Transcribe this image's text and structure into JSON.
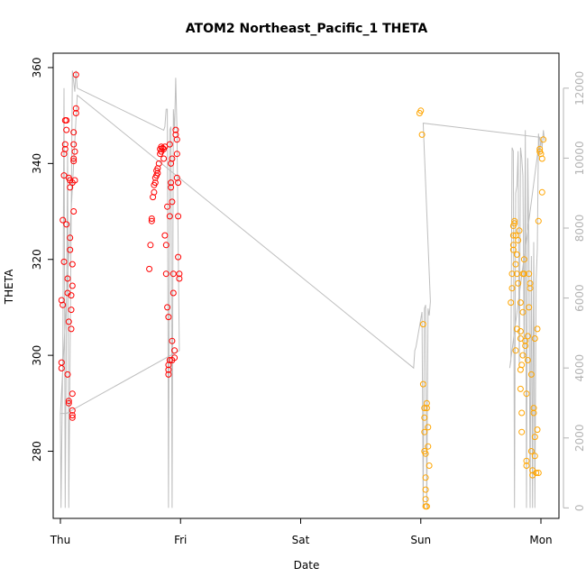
{
  "chart_data": {
    "type": "scatter",
    "title": "ATOM2 Northeast_Pacific_1 THETA",
    "xlabel": "Date",
    "ylabel": "THETA",
    "x_ticks": [
      "Thu",
      "Fri",
      "Sat",
      "Sun",
      "Mon"
    ],
    "xlim": [
      -0.06,
      4.15
    ],
    "ylim": [
      266,
      363
    ],
    "y_ticks": [
      280,
      300,
      320,
      340,
      360
    ],
    "y2lim": [
      -300,
      13000
    ],
    "y2_ticks": [
      0,
      2000,
      4000,
      6000,
      8000,
      10000,
      12000
    ],
    "colors": {
      "red": "#ff0000",
      "orange": "#ffa500",
      "gray": "#bebebe"
    },
    "series": [
      {
        "color_key": "red",
        "points": [
          [
            0.01,
            298.5
          ],
          [
            0.01,
            297.3
          ],
          [
            0.01,
            311.5
          ],
          [
            0.02,
            310.5
          ],
          [
            0.02,
            328.2
          ],
          [
            0.03,
            342
          ],
          [
            0.03,
            337.5
          ],
          [
            0.03,
            319.5
          ],
          [
            0.04,
            344
          ],
          [
            0.04,
            343
          ],
          [
            0.04,
            349
          ],
          [
            0.05,
            347
          ],
          [
            0.05,
            349
          ],
          [
            0.05,
            327.3
          ],
          [
            0.06,
            316
          ],
          [
            0.06,
            313
          ],
          [
            0.06,
            296
          ],
          [
            0.07,
            290.5
          ],
          [
            0.07,
            290
          ],
          [
            0.07,
            307
          ],
          [
            0.07,
            337
          ],
          [
            0.08,
            336.5
          ],
          [
            0.08,
            335
          ],
          [
            0.08,
            324.5
          ],
          [
            0.08,
            322
          ],
          [
            0.09,
            312.5
          ],
          [
            0.09,
            309.5
          ],
          [
            0.09,
            305.5
          ],
          [
            0.1,
            292
          ],
          [
            0.1,
            288.5
          ],
          [
            0.1,
            287.5
          ],
          [
            0.1,
            287
          ],
          [
            0.1,
            319
          ],
          [
            0.1,
            336
          ],
          [
            0.1,
            314.5
          ],
          [
            0.11,
            330
          ],
          [
            0.11,
            341
          ],
          [
            0.11,
            340.5
          ],
          [
            0.11,
            344
          ],
          [
            0.11,
            346.5
          ],
          [
            0.12,
            336.5
          ],
          [
            0.12,
            342.5
          ],
          [
            0.13,
            351.5
          ],
          [
            0.13,
            350.5
          ],
          [
            0.13,
            358.5
          ],
          [
            0.74,
            318
          ],
          [
            0.75,
            323
          ],
          [
            0.76,
            328.5
          ],
          [
            0.76,
            328
          ],
          [
            0.77,
            333
          ],
          [
            0.78,
            334
          ],
          [
            0.78,
            335.5
          ],
          [
            0.79,
            336
          ],
          [
            0.79,
            337
          ],
          [
            0.8,
            337.5
          ],
          [
            0.8,
            338.5
          ],
          [
            0.81,
            339
          ],
          [
            0.81,
            338
          ],
          [
            0.82,
            340
          ],
          [
            0.83,
            342
          ],
          [
            0.83,
            343
          ],
          [
            0.84,
            342.5
          ],
          [
            0.84,
            343.5
          ],
          [
            0.85,
            343.2
          ],
          [
            0.86,
            343
          ],
          [
            0.86,
            341
          ],
          [
            0.87,
            343.5
          ],
          [
            0.87,
            325
          ],
          [
            0.88,
            323
          ],
          [
            0.88,
            317
          ],
          [
            0.89,
            331
          ],
          [
            0.89,
            310
          ],
          [
            0.9,
            308
          ],
          [
            0.9,
            298
          ],
          [
            0.9,
            297
          ],
          [
            0.9,
            296
          ],
          [
            0.91,
            299
          ],
          [
            0.91,
            329
          ],
          [
            0.91,
            344
          ],
          [
            0.92,
            336
          ],
          [
            0.92,
            340
          ],
          [
            0.92,
            335
          ],
          [
            0.93,
            332
          ],
          [
            0.93,
            303
          ],
          [
            0.93,
            299
          ],
          [
            0.93,
            341
          ],
          [
            0.94,
            313
          ],
          [
            0.94,
            317
          ],
          [
            0.95,
            299.5
          ],
          [
            0.95,
            301
          ],
          [
            0.96,
            346
          ],
          [
            0.96,
            347
          ],
          [
            0.97,
            345
          ],
          [
            0.97,
            342
          ],
          [
            0.97,
            337
          ],
          [
            0.98,
            336
          ],
          [
            0.98,
            329
          ],
          [
            0.98,
            320.5
          ],
          [
            0.99,
            317
          ],
          [
            0.99,
            316
          ]
        ]
      },
      {
        "color_key": "orange",
        "points": [
          [
            2.99,
            350.5
          ],
          [
            3,
            351
          ],
          [
            3.01,
            346
          ],
          [
            3.02,
            306.5
          ],
          [
            3.02,
            294
          ],
          [
            3.03,
            289
          ],
          [
            3.03,
            287
          ],
          [
            3.03,
            284
          ],
          [
            3.03,
            280
          ],
          [
            3.04,
            279.5
          ],
          [
            3.04,
            274.5
          ],
          [
            3.04,
            272
          ],
          [
            3.04,
            270
          ],
          [
            3.04,
            268.5
          ],
          [
            3.05,
            268.5
          ],
          [
            3.05,
            290
          ],
          [
            3.05,
            289
          ],
          [
            3.06,
            285
          ],
          [
            3.06,
            281
          ],
          [
            3.07,
            277
          ],
          [
            3.75,
            311
          ],
          [
            3.76,
            314
          ],
          [
            3.76,
            317
          ],
          [
            3.77,
            322
          ],
          [
            3.77,
            323
          ],
          [
            3.77,
            325
          ],
          [
            3.77,
            327
          ],
          [
            3.78,
            328
          ],
          [
            3.78,
            327.5
          ],
          [
            3.79,
            325
          ],
          [
            3.79,
            319
          ],
          [
            3.8,
            321
          ],
          [
            3.8,
            317
          ],
          [
            3.81,
            315
          ],
          [
            3.81,
            324
          ],
          [
            3.82,
            326
          ],
          [
            3.83,
            311
          ],
          [
            3.83,
            303.5
          ],
          [
            3.83,
            297
          ],
          [
            3.83,
            293
          ],
          [
            3.84,
            288
          ],
          [
            3.84,
            284
          ],
          [
            3.85,
            309
          ],
          [
            3.85,
            317
          ],
          [
            3.86,
            320
          ],
          [
            3.86,
            317
          ],
          [
            3.87,
            303
          ],
          [
            3.87,
            302
          ],
          [
            3.88,
            292
          ],
          [
            3.88,
            278
          ],
          [
            3.88,
            277
          ],
          [
            3.89,
            299
          ],
          [
            3.89,
            304
          ],
          [
            3.9,
            310
          ],
          [
            3.9,
            317
          ],
          [
            3.91,
            314
          ],
          [
            3.91,
            315
          ],
          [
            3.92,
            296
          ],
          [
            3.92,
            280
          ],
          [
            3.93,
            275
          ],
          [
            3.93,
            276
          ],
          [
            3.94,
            289
          ],
          [
            3.94,
            288
          ],
          [
            3.95,
            283
          ],
          [
            3.95,
            279
          ],
          [
            3.96,
            275.5
          ],
          [
            3.97,
            284.5
          ],
          [
            3.97,
            305.5
          ],
          [
            3.98,
            275.5
          ],
          [
            3.98,
            328
          ],
          [
            3.99,
            342.5
          ],
          [
            3.99,
            343
          ],
          [
            4,
            342
          ],
          [
            4.01,
            341
          ],
          [
            4.01,
            334
          ],
          [
            4.02,
            345
          ],
          [
            3.83,
            305
          ],
          [
            3.8,
            305.5
          ],
          [
            3.79,
            301
          ],
          [
            3.95,
            303.5
          ],
          [
            3.85,
            300
          ],
          [
            3.84,
            298
          ]
        ]
      }
    ],
    "depth_line": [
      [
        0,
        2700
      ],
      [
        0.005,
        0
      ],
      [
        0.02,
        4500
      ],
      [
        0.03,
        12000
      ],
      [
        0.04,
        0
      ],
      [
        0.06,
        10200
      ],
      [
        0.07,
        0
      ],
      [
        0.1,
        12500
      ],
      [
        0.12,
        11900
      ],
      [
        0.13,
        12500
      ],
      [
        0.14,
        12000
      ],
      [
        0.86,
        10800
      ],
      [
        0.87,
        10900
      ],
      [
        0.88,
        11400
      ],
      [
        0.89,
        11400
      ],
      [
        0.9,
        0
      ],
      [
        0.91,
        10800
      ],
      [
        0.92,
        10900
      ],
      [
        0.93,
        0
      ],
      [
        0.94,
        11400
      ],
      [
        0.95,
        10800
      ],
      [
        0.96,
        12300
      ],
      [
        0.97,
        10800
      ],
      [
        0.99,
        4500
      ],
      [
        0.1,
        2800
      ],
      [
        0.05,
        2700
      ],
      [
        0,
        2700
      ],
      [
        0.14,
        11800
      ],
      [
        2.94,
        4000
      ],
      [
        2.95,
        4500
      ],
      [
        2.96,
        4600
      ],
      [
        3.01,
        5600
      ],
      [
        3.02,
        0
      ],
      [
        3.03,
        5700
      ],
      [
        3.04,
        5800
      ],
      [
        3.05,
        0
      ],
      [
        3.06,
        5700
      ],
      [
        3.07,
        5500
      ],
      [
        3.08,
        5900
      ],
      [
        3.02,
        11000
      ],
      [
        3.98,
        10600
      ],
      [
        3.99,
        10600
      ],
      [
        3.74,
        4000
      ],
      [
        3.75,
        4200
      ],
      [
        3.76,
        10300
      ],
      [
        3.77,
        10200
      ],
      [
        3.78,
        0
      ],
      [
        3.79,
        9000
      ],
      [
        3.8,
        9200
      ],
      [
        3.81,
        10200
      ],
      [
        3.82,
        4000
      ],
      [
        3.83,
        10300
      ],
      [
        3.84,
        10000
      ],
      [
        3.85,
        9500
      ],
      [
        3.86,
        4300
      ],
      [
        3.87,
        10800
      ],
      [
        3.88,
        0
      ],
      [
        3.89,
        10000
      ],
      [
        3.9,
        7500
      ],
      [
        3.91,
        0
      ],
      [
        3.92,
        7200
      ],
      [
        3.93,
        0
      ],
      [
        3.94,
        7600
      ],
      [
        3.95,
        0
      ],
      [
        3.96,
        6500
      ],
      [
        3.97,
        7400
      ],
      [
        3.98,
        10700
      ],
      [
        3.99,
        10100
      ],
      [
        4.0,
        10600
      ],
      [
        4.01,
        10300
      ],
      [
        4.02,
        10800
      ],
      [
        4.03,
        10500
      ]
    ]
  }
}
